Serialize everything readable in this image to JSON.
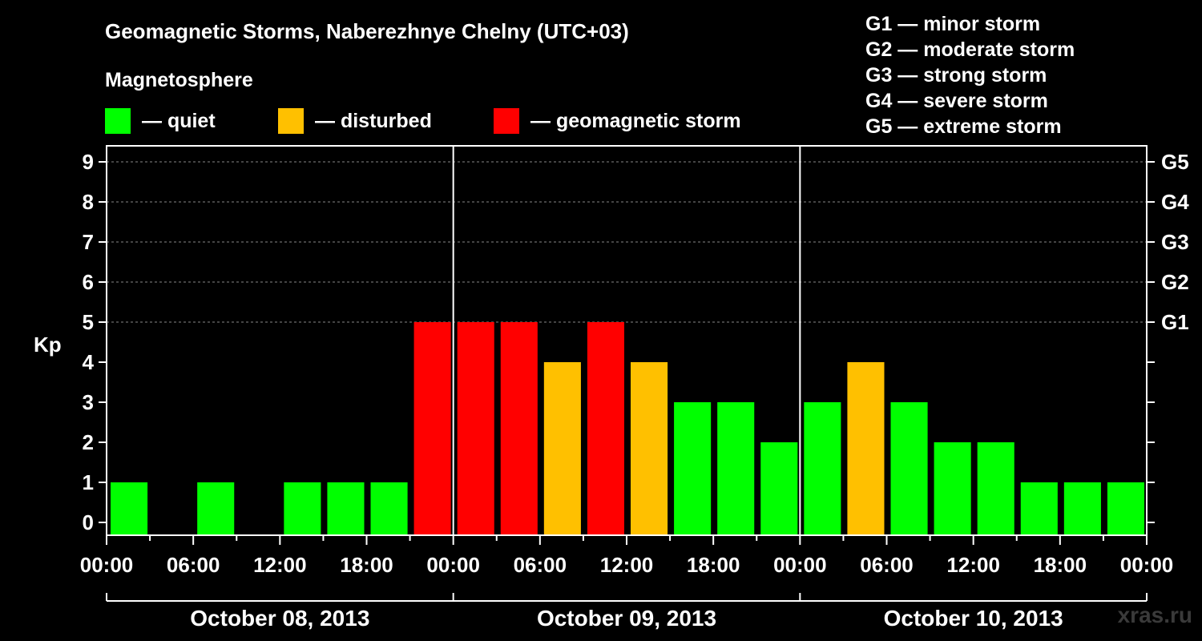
{
  "title": "Geomagnetic Storms, Naberezhnye Chelny (UTC+03)",
  "subtitle": "Magnetosphere",
  "legend": [
    {
      "label": "— quiet",
      "color": "#00ff00"
    },
    {
      "label": "— disturbed",
      "color": "#ffc000"
    },
    {
      "label": "— geomagnetic storm",
      "color": "#ff0000"
    }
  ],
  "storm_levels": [
    "G1 — minor storm",
    "G2 — moderate storm",
    "G3 — strong storm",
    "G4 — severe storm",
    "G5 — extreme storm"
  ],
  "watermark": "xras.ru",
  "chart_data": {
    "type": "bar",
    "ylabel": "Kp",
    "ylim": [
      0,
      9
    ],
    "yticks": [
      0,
      1,
      2,
      3,
      4,
      5,
      6,
      7,
      8,
      9
    ],
    "right_ticks": [
      {
        "y": 5,
        "label": "G1"
      },
      {
        "y": 6,
        "label": "G2"
      },
      {
        "y": 7,
        "label": "G3"
      },
      {
        "y": 8,
        "label": "G4"
      },
      {
        "y": 9,
        "label": "G5"
      }
    ],
    "grid_dashed_at": [
      5,
      6,
      7,
      8,
      9
    ],
    "xtick_labels": [
      "00:00",
      "06:00",
      "12:00",
      "18:00",
      "00:00",
      "06:00",
      "12:00",
      "18:00",
      "00:00",
      "06:00",
      "12:00",
      "18:00",
      "00:00"
    ],
    "days": [
      "October 08, 2013",
      "October 09, 2013",
      "October 10, 2013"
    ],
    "interval_hours": 3,
    "colors": {
      "quiet": "#00ff00",
      "disturbed": "#ffc000",
      "storm": "#ff0000"
    },
    "values": [
      1,
      0,
      1,
      0,
      1,
      1,
      1,
      5,
      5,
      5,
      4,
      5,
      4,
      3,
      3,
      2,
      3,
      4,
      3,
      2,
      2,
      1,
      1,
      1
    ],
    "categories_start": [
      "October 08 00:00",
      "October 08 03:00",
      "October 08 06:00",
      "October 08 09:00",
      "October 08 12:00",
      "October 08 15:00",
      "October 08 18:00",
      "October 08 21:00",
      "October 09 00:00",
      "October 09 03:00",
      "October 09 06:00",
      "October 09 09:00",
      "October 09 12:00",
      "October 09 15:00",
      "October 09 18:00",
      "October 09 21:00",
      "October 10 00:00",
      "October 10 03:00",
      "October 10 06:00",
      "October 10 09:00",
      "October 10 12:00",
      "October 10 15:00",
      "October 10 18:00",
      "October 10 21:00"
    ]
  }
}
